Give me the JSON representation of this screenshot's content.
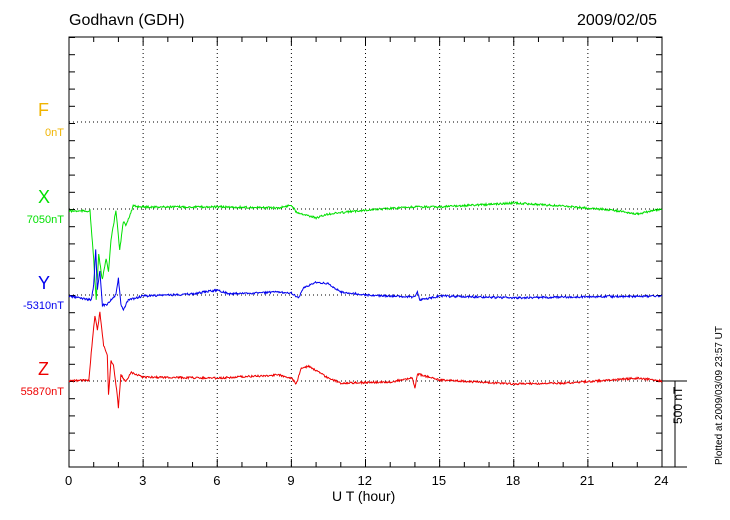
{
  "chart_data": {
    "type": "line",
    "title": "Godhavn (GDH)",
    "date": "2009/02/05",
    "xlabel": "U T (hour)",
    "xlim": [
      0,
      24
    ],
    "x_ticks": [
      "0",
      "3",
      "6",
      "9",
      "12",
      "15",
      "18",
      "21",
      "24"
    ],
    "scale_bar_label": "500 nT",
    "scale_bar_nT": 500,
    "plotted_note": "Plotted at 2009/03/09 23:57 UT",
    "grid": true,
    "series": [
      {
        "name": "F",
        "baseline_label": "0nT",
        "color": "#f0b400",
        "points": []
      },
      {
        "name": "X",
        "baseline_label": "7050nT",
        "color": "#00e000",
        "points": [
          [
            0,
            -12
          ],
          [
            0.85,
            -12
          ],
          [
            1.0,
            -296
          ],
          [
            1.1,
            -529
          ],
          [
            1.2,
            -267
          ],
          [
            1.35,
            -412
          ],
          [
            1.5,
            -285
          ],
          [
            1.6,
            -366
          ],
          [
            1.7,
            -180
          ],
          [
            1.8,
            -93
          ],
          [
            1.9,
            -6
          ],
          [
            2.05,
            -238
          ],
          [
            2.2,
            -75
          ],
          [
            2.3,
            -93
          ],
          [
            2.5,
            -23
          ],
          [
            2.6,
            17
          ],
          [
            3,
            12
          ],
          [
            6,
            12
          ],
          [
            8.5,
            6
          ],
          [
            9,
            23
          ],
          [
            9.2,
            -17
          ],
          [
            10,
            -52
          ],
          [
            10.5,
            -29
          ],
          [
            12,
            -6
          ],
          [
            14,
            12
          ],
          [
            15,
            12
          ],
          [
            18,
            35
          ],
          [
            20,
            17
          ],
          [
            22,
            -6
          ],
          [
            23,
            -29
          ],
          [
            24,
            0
          ]
        ]
      },
      {
        "name": "Y",
        "baseline_label": "-5310nT",
        "color": "#0000ee",
        "points": [
          [
            0,
            -6
          ],
          [
            0.9,
            -29
          ],
          [
            1.0,
            58
          ],
          [
            1.08,
            261
          ],
          [
            1.15,
            29
          ],
          [
            1.25,
            145
          ],
          [
            1.35,
            -58
          ],
          [
            1.5,
            -58
          ],
          [
            1.7,
            -29
          ],
          [
            1.9,
            0
          ],
          [
            2.0,
            99
          ],
          [
            2.1,
            -58
          ],
          [
            2.2,
            -87
          ],
          [
            2.4,
            -29
          ],
          [
            3,
            -6
          ],
          [
            5,
            6
          ],
          [
            6,
            29
          ],
          [
            6.5,
            6
          ],
          [
            8.5,
            17
          ],
          [
            9,
            12
          ],
          [
            9.3,
            -17
          ],
          [
            9.5,
            41
          ],
          [
            10,
            75
          ],
          [
            10.5,
            64
          ],
          [
            11,
            17
          ],
          [
            12,
            0
          ],
          [
            14,
            -12
          ],
          [
            14.1,
            17
          ],
          [
            14.2,
            -29
          ],
          [
            15,
            -6
          ],
          [
            18,
            -17
          ],
          [
            20,
            -12
          ],
          [
            24,
            -6
          ]
        ]
      },
      {
        "name": "Z",
        "baseline_label": "55870nT",
        "color": "#ee0000",
        "points": [
          [
            0,
            0
          ],
          [
            0.8,
            6
          ],
          [
            0.95,
            238
          ],
          [
            1.05,
            383
          ],
          [
            1.15,
            296
          ],
          [
            1.25,
            401
          ],
          [
            1.4,
            209
          ],
          [
            1.55,
            151
          ],
          [
            1.6,
            -81
          ],
          [
            1.7,
            122
          ],
          [
            1.8,
            93
          ],
          [
            1.95,
            -81
          ],
          [
            2.0,
            -157
          ],
          [
            2.1,
            35
          ],
          [
            2.3,
            -6
          ],
          [
            2.5,
            52
          ],
          [
            3,
            23
          ],
          [
            6,
            17
          ],
          [
            8.5,
            35
          ],
          [
            9,
            17
          ],
          [
            9.2,
            -17
          ],
          [
            9.4,
            75
          ],
          [
            9.7,
            87
          ],
          [
            10.5,
            17
          ],
          [
            11,
            -12
          ],
          [
            13,
            -6
          ],
          [
            13.9,
            17
          ],
          [
            14.0,
            -41
          ],
          [
            14.1,
            41
          ],
          [
            15,
            6
          ],
          [
            18,
            -17
          ],
          [
            20,
            -12
          ],
          [
            22,
            6
          ],
          [
            23,
            17
          ],
          [
            24,
            0
          ]
        ]
      }
    ]
  }
}
